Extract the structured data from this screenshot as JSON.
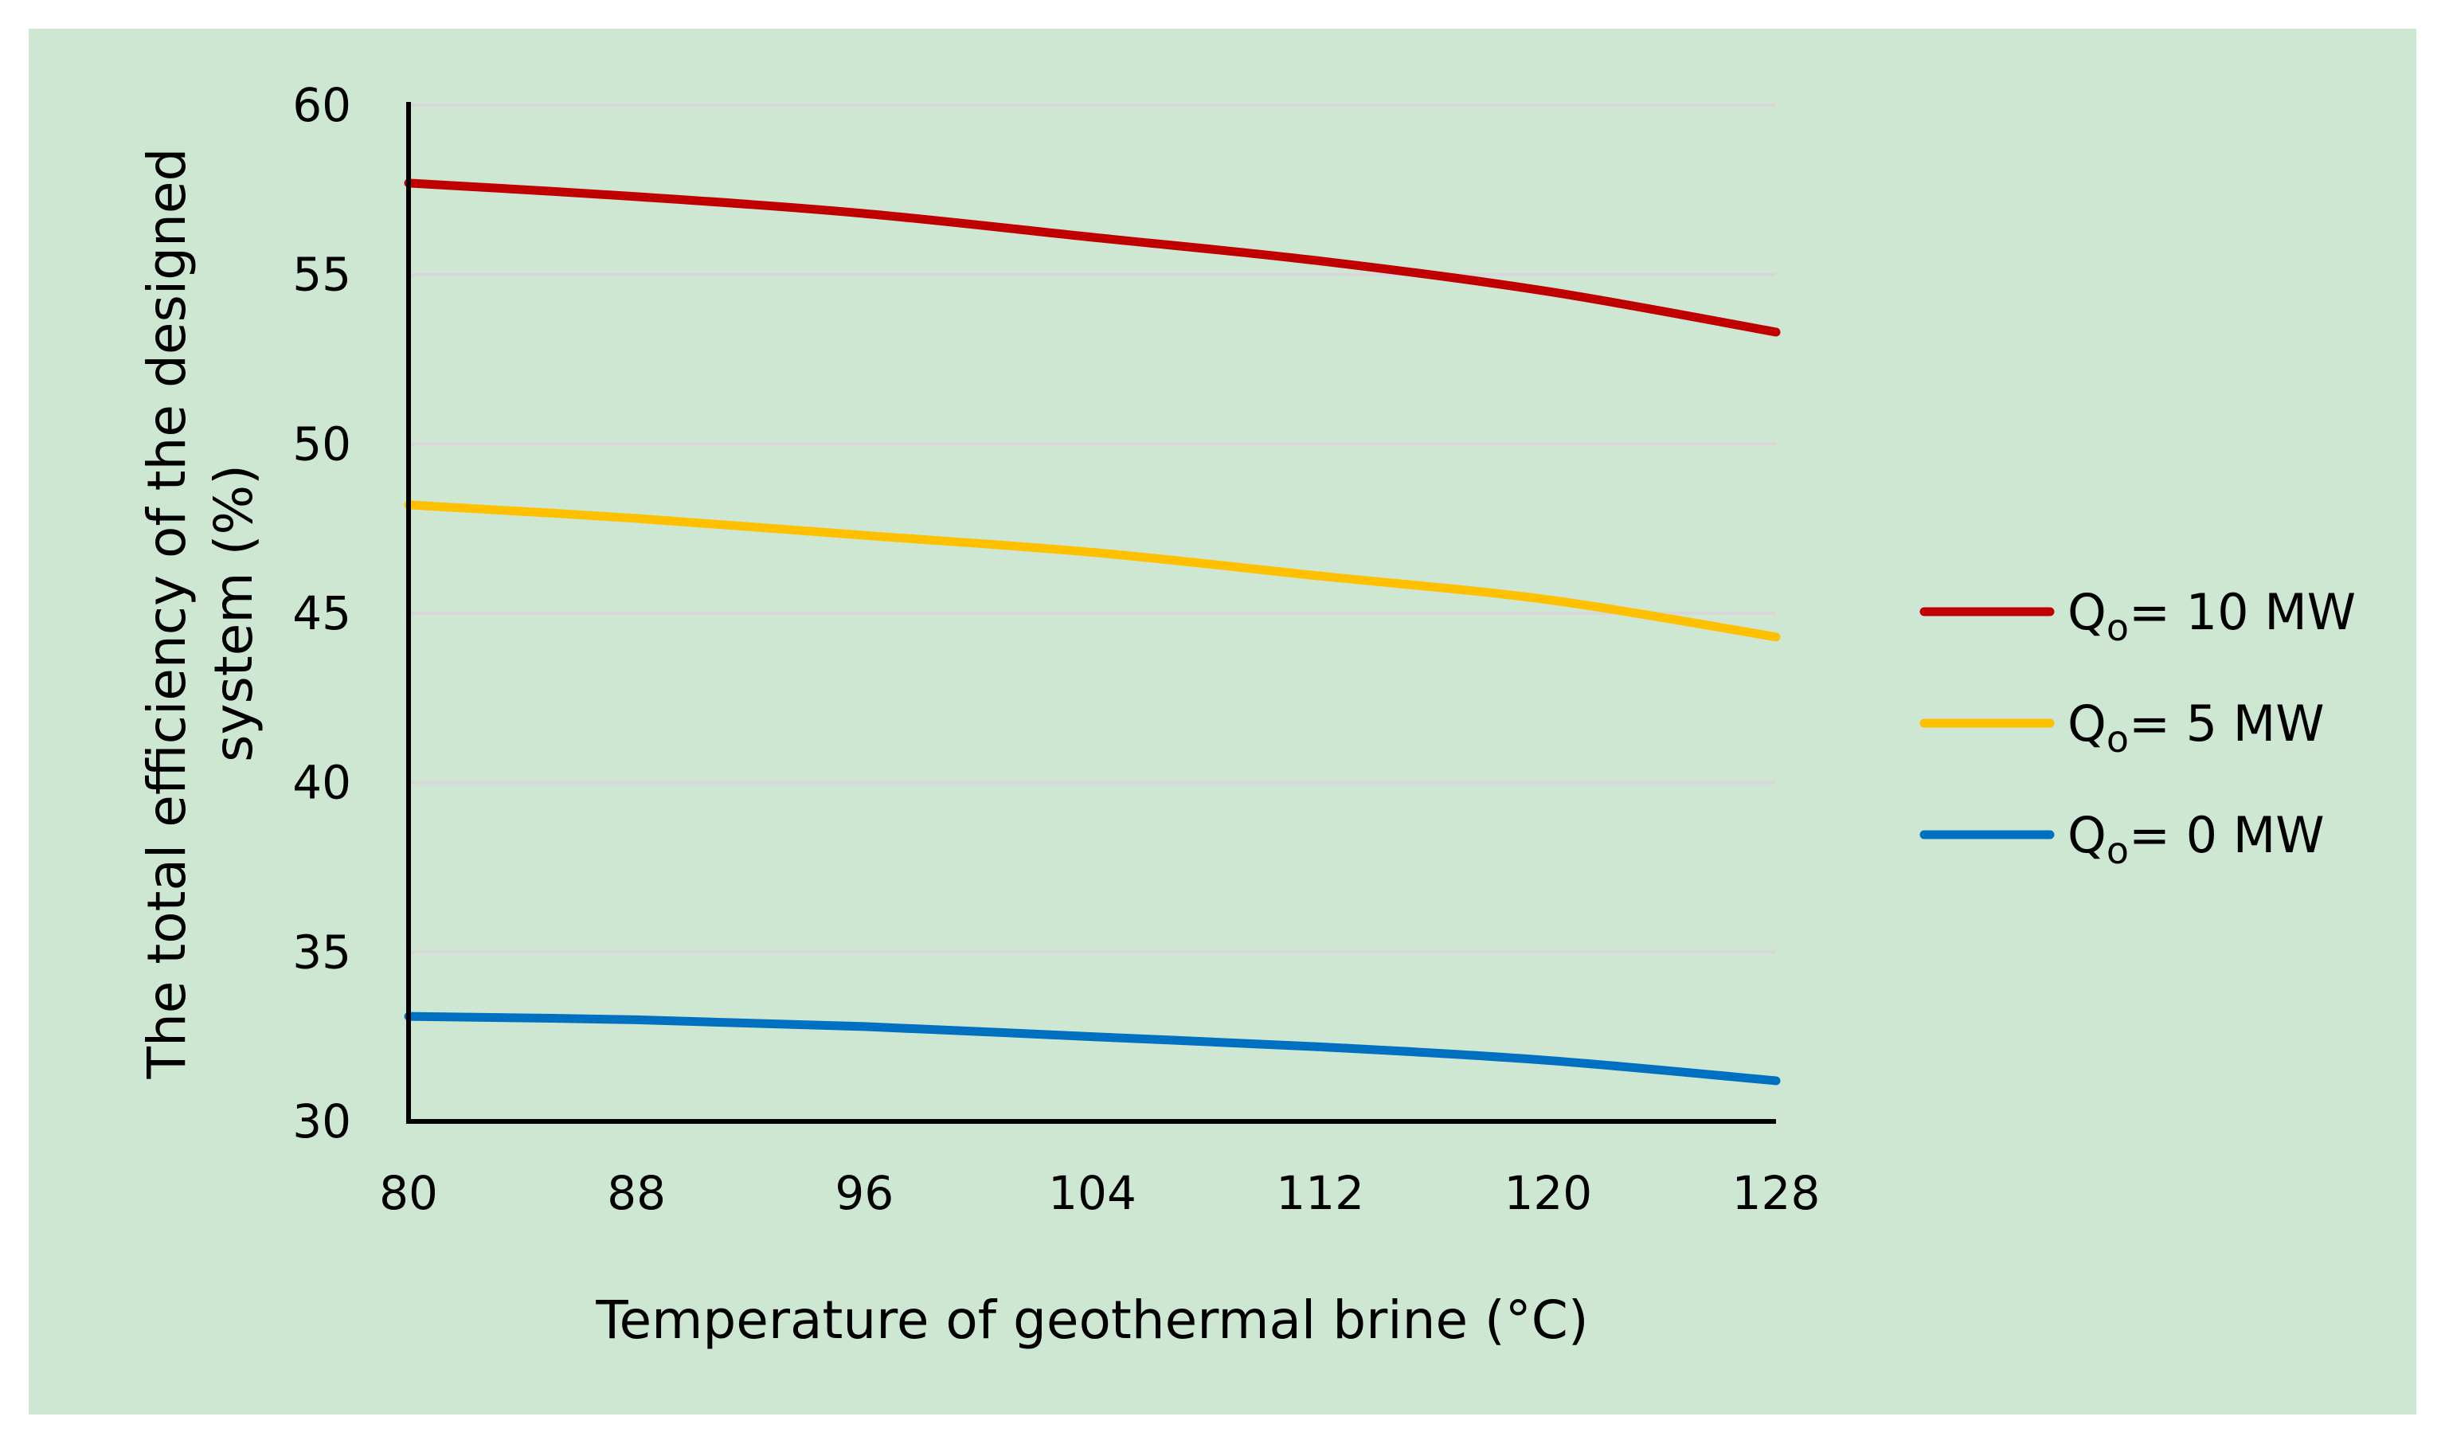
{
  "chart_data": {
    "type": "line",
    "title": "",
    "xlabel": "Temperature of geothermal brine (°C)",
    "ylabel_lines": [
      "The total efficiency of the designed",
      "system (%)"
    ],
    "x": [
      80,
      88,
      96,
      104,
      112,
      120,
      128
    ],
    "xlim": [
      80,
      128
    ],
    "ylim": [
      30,
      60
    ],
    "x_ticks": [
      "80",
      "88",
      "96",
      "104",
      "112",
      "120",
      "128"
    ],
    "y_ticks": [
      "30",
      "35",
      "40",
      "45",
      "50",
      "55",
      "60"
    ],
    "grid": "horizontal",
    "legend_position": "right",
    "background_color": "#cde7d2",
    "series": [
      {
        "name_prefix": "Q",
        "name_sub": "o",
        "name_suffix": "= 10 MW",
        "color": "#c00000",
        "values": [
          57.7,
          57.3,
          56.8,
          56.1,
          55.4,
          54.5,
          53.3
        ]
      },
      {
        "name_prefix": "Q",
        "name_sub": "o",
        "name_suffix": "= 5 MW",
        "color": "#ffc000",
        "values": [
          48.2,
          47.8,
          47.3,
          46.8,
          46.1,
          45.4,
          44.3
        ]
      },
      {
        "name_prefix": "Q",
        "name_sub": "o",
        "name_suffix": "= 0 MW",
        "color": "#0070c0",
        "values": [
          33.1,
          33.0,
          32.8,
          32.5,
          32.2,
          31.8,
          31.2
        ]
      }
    ]
  }
}
